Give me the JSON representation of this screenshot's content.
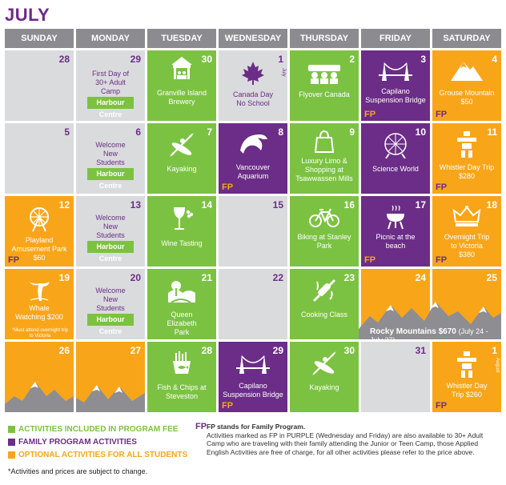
{
  "title": "JULY",
  "days": [
    "SUNDAY",
    "MONDAY",
    "TUESDAY",
    "WEDNESDAY",
    "THURSDAY",
    "FRIDAY",
    "SATURDAY"
  ],
  "cells": {
    "r0c0": {
      "date": "28"
    },
    "r0c1": {
      "date": "29",
      "text": "First Day of 30+ Adult Camp",
      "tag": "Harbour Centre"
    },
    "r0c2": {
      "date": "30",
      "text": "Granville Island Brewery",
      "icon": "market-stall-icon"
    },
    "r0c3": {
      "date": "1",
      "text": "Canada Day No School",
      "icon": "maple-leaf-icon",
      "side": "July"
    },
    "r0c4": {
      "date": "2",
      "text": "Flyover Canada",
      "icon": "audience-icon"
    },
    "r0c5": {
      "date": "3",
      "text": "Capilano Suspension Bridge",
      "fp": "FP",
      "icon": "bridge-icon"
    },
    "r0c6": {
      "date": "4",
      "text": "Grouse Mountain $50",
      "fp": "FP",
      "icon": "mountain-icon"
    },
    "r1c0": {
      "date": "5"
    },
    "r1c1": {
      "date": "6",
      "text": "Welcome New Students",
      "tag": "Harbour Centre"
    },
    "r1c2": {
      "date": "7",
      "text": "Kayaking",
      "icon": "kayak-icon"
    },
    "r1c3": {
      "date": "8",
      "text": "Vancouver Aquarium",
      "fp": "FP",
      "icon": "dolphin-icon"
    },
    "r1c4": {
      "date": "9",
      "text": "Luxury Limo & Shopping at Tsawwassen Mills",
      "icon": "shopping-bag-icon"
    },
    "r1c5": {
      "date": "10",
      "text": "Science World",
      "icon": "geodesic-dome-icon"
    },
    "r1c6": {
      "date": "11",
      "text": "Whistler Day Trip $280",
      "fp": "FP",
      "icon": "inukshuk-icon"
    },
    "r2c0": {
      "date": "12",
      "text": "Playland Amusement Park $60",
      "fp": "FP",
      "icon": "ferris-wheel-icon"
    },
    "r2c1": {
      "date": "13",
      "text": "Welcome New Students",
      "tag": "Harbour Centre"
    },
    "r2c2": {
      "date": "14",
      "text": "Wine Tasting",
      "icon": "wine-glass-icon"
    },
    "r2c3": {
      "date": "15"
    },
    "r2c4": {
      "date": "16",
      "text": "Biking at Stanley Park",
      "icon": "bicycle-icon"
    },
    "r2c5": {
      "date": "17",
      "text": "Picnic at the beach",
      "fp": "FP",
      "icon": "grill-icon"
    },
    "r2c6": {
      "date": "18",
      "text": "Overnight Trip to Victoria $380",
      "fp": "FP",
      "icon": "crown-icon"
    },
    "r3c0": {
      "date": "19",
      "text": "Whale Watching $200",
      "note": "*Must attend overnight trip to Victoria",
      "icon": "whale-tail-icon"
    },
    "r3c1": {
      "date": "20",
      "text": "Welcome New Students",
      "tag": "Harbour Centre"
    },
    "r3c2": {
      "date": "21",
      "text": "Queen Elizabeth Park",
      "icon": "park-icon"
    },
    "r3c3": {
      "date": "22"
    },
    "r3c4": {
      "date": "23",
      "text": "Cooking Class",
      "icon": "rolling-pin-icon"
    },
    "r3c5": {
      "date": "24"
    },
    "r3c6": {
      "date": "25"
    },
    "rocky": {
      "text": "Rocky Mountains $670",
      "dates": "(July 24 - July 27)"
    },
    "r4c0": {
      "date": "26"
    },
    "r4c1": {
      "date": "27"
    },
    "r4c2": {
      "date": "28",
      "text": "Fish & Chips at Steveston",
      "icon": "fish-chips-icon"
    },
    "r4c3": {
      "date": "29",
      "text": "Capilano Suspension Bridge",
      "fp": "FP",
      "icon": "bridge-icon"
    },
    "r4c4": {
      "date": "30",
      "text": "Kayaking",
      "icon": "kayak-icon"
    },
    "r4c5": {
      "date": "31"
    },
    "r4c6": {
      "date": "1",
      "text": "Whistler Day Trip $260",
      "fp": "FP",
      "icon": "inukshuk-icon",
      "side": "August"
    }
  },
  "legend": [
    {
      "label": "ACTIVITIES INCLUDED IN PROGRAM FEE",
      "color": "#7cc242"
    },
    {
      "label": "FAMILY PROGRAM ACTIVITIES",
      "color": "#6b2d87"
    },
    {
      "label": "OPTIONAL ACTIVITIES FOR ALL STUDENTS",
      "color": "#f9a51a"
    }
  ],
  "fp_note": {
    "label": "FP",
    "heading": "FP stands for Family Program.",
    "body": "Activities marked as FP in PURPLE (Wednesday and Friday) are also available to 30+ Adult Camp who are traveling with their family attending the Junior or Teen Camp, those Applied English Activities are free of charge, for all other activities please refer to the price above."
  },
  "footnote": "*Activities and prices are subject to change.",
  "colors": {
    "green": "#7cc242",
    "purple": "#6b2d87",
    "orange": "#f9a51a",
    "gray": "#dadbdd"
  }
}
